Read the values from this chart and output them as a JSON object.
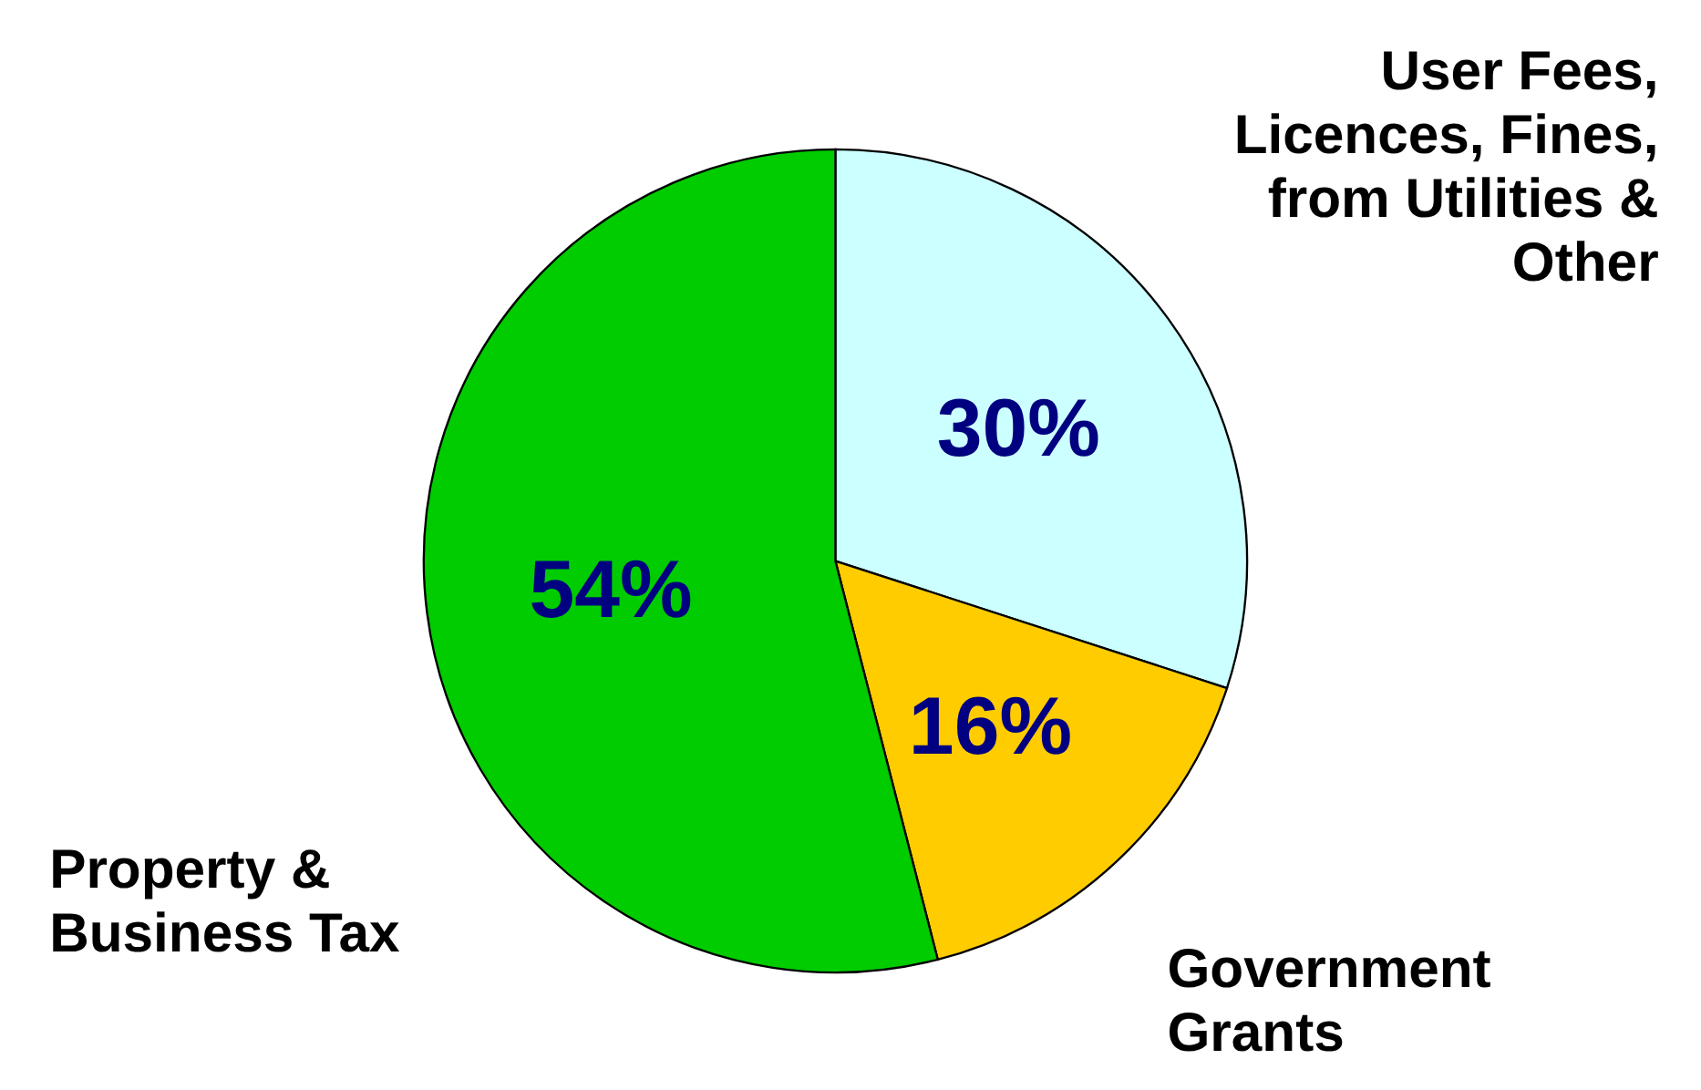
{
  "chart_data": {
    "type": "pie",
    "categories": [
      "User Fees, Licences, Fines, from Utilities & Other",
      "Government Grants",
      "Property & Business Tax"
    ],
    "values": [
      30,
      16,
      54
    ],
    "colors": [
      "#ccffff",
      "#ffcc00",
      "#00cc00"
    ],
    "value_labels": [
      "30%",
      "16%",
      "54%"
    ]
  }
}
